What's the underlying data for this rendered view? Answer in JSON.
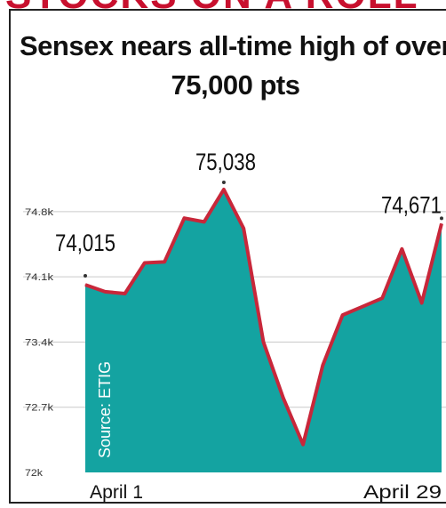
{
  "banner_text": "STOCKS ON A ROLL",
  "chart_data": {
    "type": "area",
    "title": "Sensex nears all-time high of over 75,000 pts",
    "source_label": "Source: ETIG",
    "xlabel": "",
    "ylabel": "",
    "x_tick_labels": [
      "April 1",
      "April 29"
    ],
    "y_ticks": [
      72000,
      72700,
      73400,
      74100,
      74800
    ],
    "y_tick_labels": [
      "72k",
      "72.7k",
      "73.4k",
      "74.1k",
      "74.8k"
    ],
    "ylim": [
      72000,
      75200
    ],
    "grid": true,
    "series": [
      {
        "values": [
          74015,
          73940,
          73920,
          74250,
          74260,
          74730,
          74690,
          75038,
          74620,
          73400,
          72800,
          72300,
          73150,
          73690,
          73780,
          73870,
          74400,
          73820,
          74671
        ]
      }
    ],
    "annotations": [
      {
        "index": 0,
        "label": "74,015"
      },
      {
        "index": 7,
        "label": "75,038"
      },
      {
        "index": 18,
        "label": "74,671"
      }
    ],
    "fill_color": "#14a3a1",
    "line_color": "#c8273a"
  }
}
